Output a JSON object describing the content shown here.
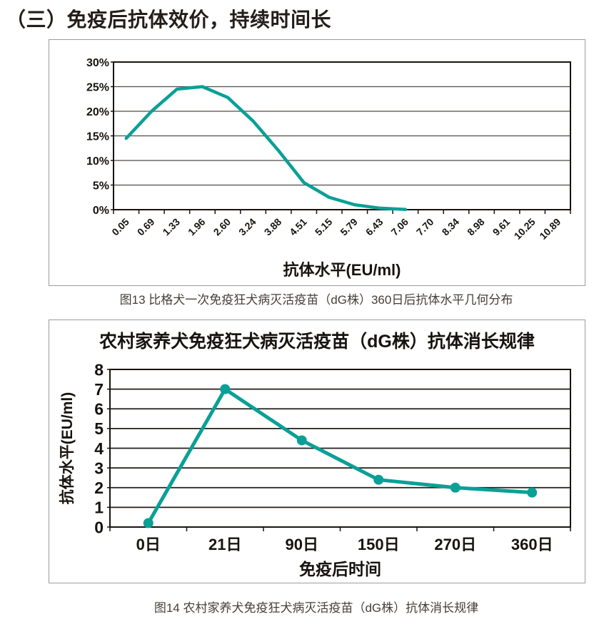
{
  "page": {
    "heading": "（三）免疫后抗体效价，持续时间长",
    "caption1": "图13 比格犬一次免疫狂犬病灭活疫苗（dG株）360日后抗体水平几何分布",
    "caption2": "图14 农村家养犬免疫狂犬病灭活疫苗（dG株）抗体消长规律"
  },
  "colors": {
    "line": "#0AA096",
    "text": "#241e1b",
    "axis": "#17130f",
    "grid_light": "#4f4b47",
    "grid_dark": "#211d1a",
    "caption": "#463e3a",
    "box_border": "#9c9c9c"
  },
  "chart_data": [
    {
      "type": "line",
      "title": "",
      "xlabel": "抗体水平(EU/ml)",
      "ylabel": "",
      "categories": [
        "0.05",
        "0.69",
        "1.33",
        "1.96",
        "2.60",
        "3.24",
        "3.88",
        "4.51",
        "5.15",
        "5.79",
        "6.43",
        "7.06",
        "7.70",
        "8.34",
        "8.98",
        "9.61",
        "10.25",
        "10.89"
      ],
      "values": [
        14.5,
        20,
        24.5,
        25,
        22.8,
        18,
        12,
        5.5,
        2.5,
        1,
        0.3,
        0.05,
        null,
        null,
        null,
        null,
        null,
        null
      ],
      "ylim": [
        0,
        30
      ],
      "ytick_step": 5,
      "ytick_format": "percent",
      "grid": true,
      "markers": false,
      "legend": "none"
    },
    {
      "type": "line",
      "title": "农村家养犬免疫狂犬病灭活疫苗（dG株）抗体消长规律",
      "xlabel": "免疫后时间",
      "ylabel": "抗体水平(EU/ml)",
      "categories": [
        "0日",
        "21日",
        "90日",
        "150日",
        "270日",
        "360日"
      ],
      "values": [
        0.2,
        7.0,
        4.4,
        2.4,
        2.0,
        1.75
      ],
      "ylim": [
        0,
        8
      ],
      "ytick_step": 1,
      "ytick_format": "number",
      "grid": true,
      "markers": true,
      "legend": "none"
    }
  ]
}
